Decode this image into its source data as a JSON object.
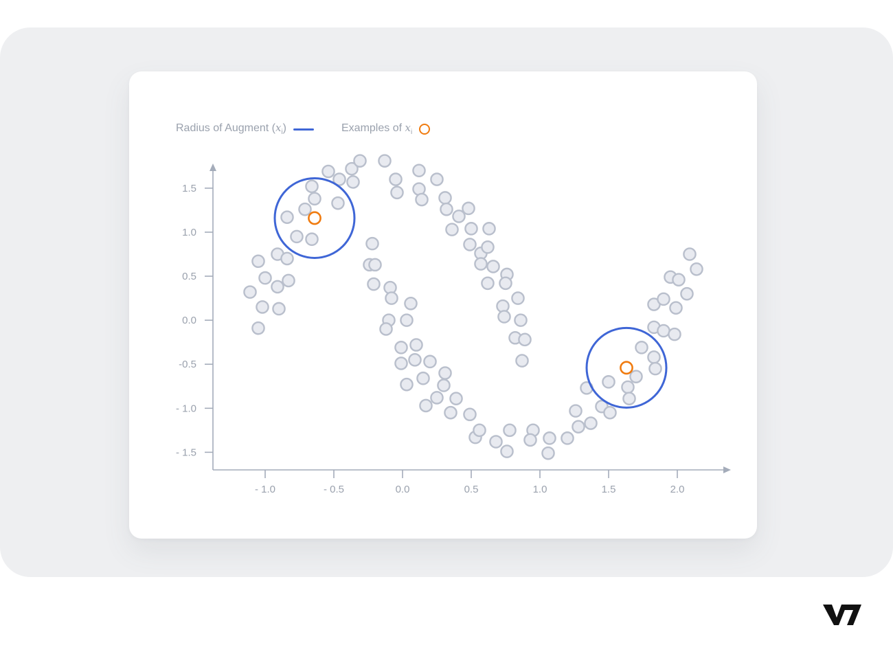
{
  "brand": {
    "logo_text": "V7",
    "logo_color": "#111111"
  },
  "colors": {
    "point_fill": "#e8eaf0",
    "point_stroke": "#b9bfcc",
    "radius_circle": "#3f66d6",
    "highlight": "#f07b0f",
    "axis": "#a4acba",
    "tick_label": "#9aa1ad"
  },
  "legend": {
    "radius_label": "Radius of Augment (",
    "radius_var": "x",
    "radius_sub": "i",
    "radius_close": ")",
    "examples_label": "Examples of ",
    "examples_var": "x",
    "examples_sub": "i"
  },
  "chart_data": {
    "type": "scatter",
    "xlim": [
      -1.38,
      2.39
    ],
    "ylim": [
      -1.7,
      1.78
    ],
    "x_ticks": [
      -1.0,
      -0.5,
      0.0,
      0.5,
      1.0,
      1.5,
      2.0
    ],
    "x_tick_labels": [
      "- 1.0",
      "- 0.5",
      "0.0",
      "0.5",
      "1.0",
      "1.5",
      "2.0"
    ],
    "y_ticks": [
      1.5,
      1.0,
      0.5,
      0.0,
      -0.5,
      -1.0,
      -1.5
    ],
    "y_tick_labels": [
      "1.5",
      "1.0",
      "0.5",
      "0.0",
      "-0.5",
      "- 1.0",
      "- 1.5"
    ],
    "points": [
      [
        -1.11,
        0.32
      ],
      [
        -1.05,
        0.67
      ],
      [
        -1.05,
        -0.09
      ],
      [
        -1.02,
        0.15
      ],
      [
        -1.0,
        0.48
      ],
      [
        -0.91,
        0.75
      ],
      [
        -0.91,
        0.38
      ],
      [
        -0.9,
        0.13
      ],
      [
        -0.84,
        0.7
      ],
      [
        -0.83,
        0.45
      ],
      [
        -0.84,
        1.17
      ],
      [
        -0.77,
        0.95
      ],
      [
        -0.71,
        1.26
      ],
      [
        -0.66,
        1.52
      ],
      [
        -0.64,
        1.38
      ],
      [
        -0.66,
        0.92
      ],
      [
        -0.47,
        1.33
      ],
      [
        -0.54,
        1.69
      ],
      [
        -0.46,
        1.6
      ],
      [
        -0.37,
        1.72
      ],
      [
        -0.36,
        1.57
      ],
      [
        -0.31,
        1.81
      ],
      [
        -0.13,
        1.81
      ],
      [
        -0.05,
        1.6
      ],
      [
        -0.04,
        1.45
      ],
      [
        0.12,
        1.7
      ],
      [
        0.12,
        1.49
      ],
      [
        0.14,
        1.37
      ],
      [
        0.25,
        1.6
      ],
      [
        0.31,
        1.39
      ],
      [
        0.32,
        1.26
      ],
      [
        0.36,
        1.03
      ],
      [
        0.41,
        1.18
      ],
      [
        0.48,
        1.27
      ],
      [
        0.5,
        1.04
      ],
      [
        0.49,
        0.86
      ],
      [
        0.57,
        0.76
      ],
      [
        0.57,
        0.64
      ],
      [
        0.63,
        1.04
      ],
      [
        0.62,
        0.83
      ],
      [
        0.66,
        0.61
      ],
      [
        0.62,
        0.42
      ],
      [
        0.76,
        0.52
      ],
      [
        0.75,
        0.42
      ],
      [
        0.73,
        0.16
      ],
      [
        0.74,
        0.04
      ],
      [
        0.84,
        0.25
      ],
      [
        0.82,
        -0.2
      ],
      [
        0.86,
        0.0
      ],
      [
        0.89,
        -0.22
      ],
      [
        0.87,
        -0.46
      ],
      [
        -0.22,
        0.87
      ],
      [
        -0.24,
        0.63
      ],
      [
        -0.2,
        0.63
      ],
      [
        -0.21,
        0.41
      ],
      [
        -0.09,
        0.37
      ],
      [
        -0.08,
        0.25
      ],
      [
        -0.1,
        0.0
      ],
      [
        -0.12,
        -0.1
      ],
      [
        0.06,
        0.19
      ],
      [
        0.03,
        0.0
      ],
      [
        -0.01,
        -0.31
      ],
      [
        0.1,
        -0.28
      ],
      [
        0.09,
        -0.45
      ],
      [
        -0.01,
        -0.49
      ],
      [
        0.03,
        -0.73
      ],
      [
        0.15,
        -0.66
      ],
      [
        0.2,
        -0.47
      ],
      [
        0.17,
        -0.97
      ],
      [
        0.25,
        -0.88
      ],
      [
        0.31,
        -0.6
      ],
      [
        0.3,
        -0.74
      ],
      [
        0.35,
        -1.05
      ],
      [
        0.39,
        -0.89
      ],
      [
        0.49,
        -1.07
      ],
      [
        0.53,
        -1.33
      ],
      [
        0.56,
        -1.25
      ],
      [
        0.68,
        -1.38
      ],
      [
        0.76,
        -1.49
      ],
      [
        0.78,
        -1.25
      ],
      [
        0.95,
        -1.25
      ],
      [
        0.93,
        -1.36
      ],
      [
        1.06,
        -1.51
      ],
      [
        1.07,
        -1.34
      ],
      [
        1.2,
        -1.34
      ],
      [
        1.26,
        -1.03
      ],
      [
        1.28,
        -1.21
      ],
      [
        1.34,
        -0.77
      ],
      [
        1.37,
        -1.17
      ],
      [
        1.45,
        -0.98
      ],
      [
        1.5,
        -0.7
      ],
      [
        1.51,
        -1.05
      ],
      [
        1.64,
        -0.76
      ],
      [
        1.65,
        -0.89
      ],
      [
        1.7,
        -0.64
      ],
      [
        1.74,
        -0.31
      ],
      [
        1.83,
        -0.42
      ],
      [
        1.84,
        -0.55
      ],
      [
        1.83,
        -0.08
      ],
      [
        1.83,
        0.18
      ],
      [
        1.9,
        -0.12
      ],
      [
        1.9,
        0.24
      ],
      [
        1.95,
        0.49
      ],
      [
        1.98,
        -0.16
      ],
      [
        1.99,
        0.14
      ],
      [
        2.01,
        0.46
      ],
      [
        2.07,
        0.3
      ],
      [
        2.09,
        0.75
      ],
      [
        2.14,
        0.58
      ]
    ],
    "examples": [
      [
        -0.64,
        1.16
      ],
      [
        1.63,
        -0.54
      ]
    ],
    "augment_radius": 0.29
  }
}
